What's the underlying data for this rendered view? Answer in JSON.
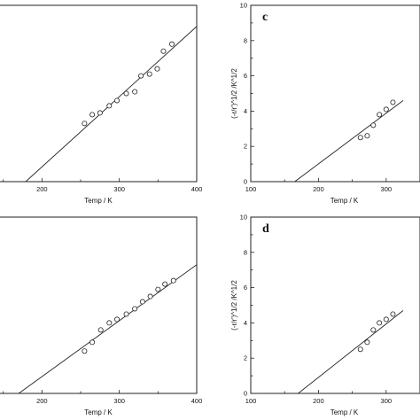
{
  "chart_data": [
    {
      "panel": "",
      "type": "scatter",
      "xlabel": "Temp / K",
      "ylabel": "",
      "xlim": [
        100,
        400
      ],
      "ylim": [
        0,
        10
      ],
      "x_ticks": [
        "200",
        "300",
        "400"
      ],
      "y_ticks": [],
      "points": [
        {
          "x": 255,
          "y": 3.3
        },
        {
          "x": 265,
          "y": 3.8
        },
        {
          "x": 275,
          "y": 3.9
        },
        {
          "x": 287,
          "y": 4.3
        },
        {
          "x": 297,
          "y": 4.6
        },
        {
          "x": 309,
          "y": 5.0
        },
        {
          "x": 320,
          "y": 5.1
        },
        {
          "x": 328,
          "y": 6.0
        },
        {
          "x": 339,
          "y": 6.1
        },
        {
          "x": 349,
          "y": 6.4
        },
        {
          "x": 357,
          "y": 7.4
        },
        {
          "x": 368,
          "y": 7.8
        }
      ],
      "fit_line": {
        "x": [
          179,
          400
        ],
        "y": [
          0,
          8.8
        ]
      }
    },
    {
      "panel": "c",
      "type": "scatter",
      "xlabel": "Temp / K",
      "ylabel": "(-r/r')^1/2 /K^1/2",
      "xlim": [
        100,
        350
      ],
      "ylim": [
        0,
        10
      ],
      "x_ticks": [
        "100",
        "200",
        "300"
      ],
      "y_ticks": [
        "0",
        "2",
        "4",
        "6",
        "8",
        "10"
      ],
      "points": [
        {
          "x": 262,
          "y": 2.5
        },
        {
          "x": 272,
          "y": 2.6
        },
        {
          "x": 281,
          "y": 3.2
        },
        {
          "x": 290,
          "y": 3.8
        },
        {
          "x": 300,
          "y": 4.1
        },
        {
          "x": 310,
          "y": 4.5
        }
      ],
      "fit_line": {
        "x": [
          165,
          325
        ],
        "y": [
          0,
          4.6
        ]
      }
    },
    {
      "panel": "",
      "type": "scatter",
      "xlabel": "Temp / K",
      "ylabel": "",
      "xlim": [
        100,
        400
      ],
      "ylim": [
        0,
        10
      ],
      "x_ticks": [
        "200",
        "300",
        "400"
      ],
      "y_ticks": [],
      "points": [
        {
          "x": 255,
          "y": 2.4
        },
        {
          "x": 265,
          "y": 2.9
        },
        {
          "x": 276,
          "y": 3.6
        },
        {
          "x": 287,
          "y": 4.0
        },
        {
          "x": 297,
          "y": 4.2
        },
        {
          "x": 309,
          "y": 4.5
        },
        {
          "x": 320,
          "y": 4.8
        },
        {
          "x": 330,
          "y": 5.2
        },
        {
          "x": 340,
          "y": 5.5
        },
        {
          "x": 350,
          "y": 5.9
        },
        {
          "x": 359,
          "y": 6.2
        },
        {
          "x": 370,
          "y": 6.4
        }
      ],
      "fit_line": {
        "x": [
          170,
          400
        ],
        "y": [
          0,
          7.3
        ]
      }
    },
    {
      "panel": "d",
      "type": "scatter",
      "xlabel": "Temp / K",
      "ylabel": "(-r/r')^1/2 /K^1/2",
      "xlim": [
        100,
        350
      ],
      "ylim": [
        0,
        10
      ],
      "x_ticks": [
        "100",
        "200",
        "300"
      ],
      "y_ticks": [
        "0",
        "2",
        "4",
        "6",
        "8",
        "10"
      ],
      "points": [
        {
          "x": 262,
          "y": 2.5
        },
        {
          "x": 272,
          "y": 2.9
        },
        {
          "x": 281,
          "y": 3.6
        },
        {
          "x": 290,
          "y": 4.0
        },
        {
          "x": 300,
          "y": 4.2
        },
        {
          "x": 310,
          "y": 4.5
        }
      ],
      "fit_line": {
        "x": [
          170,
          325
        ],
        "y": [
          0,
          4.7
        ]
      }
    }
  ]
}
